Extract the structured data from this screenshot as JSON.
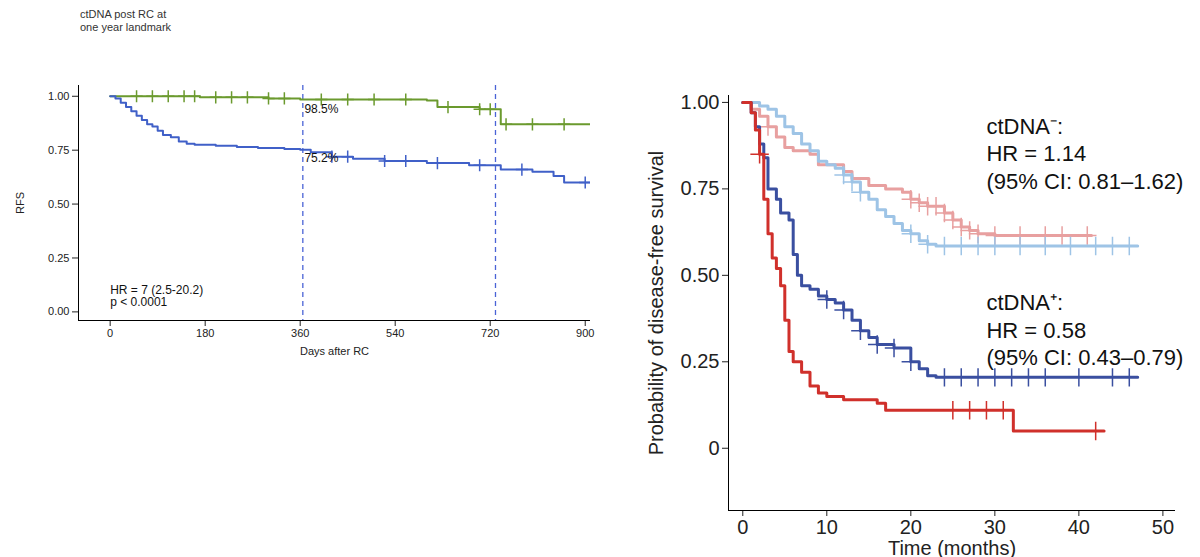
{
  "chart_data": [
    {
      "type": "line",
      "title": "ctDNA post RC at one year landmark",
      "xlabel": "Days after RC",
      "ylabel": "RFS",
      "xlim": [
        -60,
        910
      ],
      "ylim": [
        -0.04,
        1.05
      ],
      "xticks": [
        0,
        180,
        360,
        540,
        720,
        900
      ],
      "yticks": [
        {
          "value": 0,
          "label": "0.00"
        },
        {
          "value": 0.25,
          "label": "0.25"
        },
        {
          "value": 0.5,
          "label": "0.50"
        },
        {
          "value": 0.75,
          "label": "0.75"
        },
        {
          "value": 1,
          "label": "1.00"
        }
      ],
      "reference_lines": [
        {
          "x": 365,
          "color": "#4a63d6",
          "line_style": "dashed"
        },
        {
          "x": 730,
          "color": "#4a63d6",
          "line_style": "dashed"
        }
      ],
      "series": [
        {
          "color": "#6b9a2e",
          "marker": "plus",
          "x": [
            0,
            170,
            300,
            360,
            600,
            620,
            700,
            740,
            910
          ],
          "values": [
            1,
            0.995,
            0.99,
            0.985,
            0.98,
            0.95,
            0.94,
            0.87,
            0.87
          ],
          "censored": [
            50,
            80,
            110,
            140,
            160,
            200,
            230,
            260,
            300,
            330,
            400,
            450,
            500,
            560,
            640,
            700,
            720,
            750,
            800,
            860
          ]
        },
        {
          "color": "#4060c8",
          "marker": "plus",
          "x": [
            0,
            10,
            20,
            30,
            40,
            50,
            60,
            70,
            80,
            90,
            100,
            115,
            130,
            145,
            160,
            200,
            240,
            280,
            330,
            360,
            380,
            420,
            460,
            520,
            600,
            680,
            740,
            800,
            840,
            860,
            910
          ],
          "values": [
            1,
            0.99,
            0.97,
            0.95,
            0.93,
            0.91,
            0.89,
            0.87,
            0.86,
            0.84,
            0.82,
            0.81,
            0.79,
            0.78,
            0.775,
            0.77,
            0.765,
            0.76,
            0.755,
            0.752,
            0.74,
            0.72,
            0.71,
            0.7,
            0.69,
            0.68,
            0.66,
            0.65,
            0.63,
            0.6,
            0.6
          ],
          "censored": [
            420,
            450,
            520,
            560,
            620,
            700,
            780,
            900
          ]
        }
      ],
      "annotations": [
        {
          "text": "98.5%",
          "x": 368,
          "y": 0.94
        },
        {
          "text": "75.2%",
          "x": 368,
          "y": 0.715
        },
        {
          "text": "HR = 7 (2.5-20.2)",
          "x": 0,
          "y": 0.1
        },
        {
          "text": "p < 0.0001",
          "x": 0,
          "y": 0.045
        }
      ]
    },
    {
      "type": "line",
      "xlabel": "Time (months)",
      "ylabel": "Probability of disease-free survival",
      "xlim": [
        -1.7,
        51.5
      ],
      "ylim": [
        -0.18,
        1.02
      ],
      "xticks": [
        0,
        10,
        20,
        30,
        40,
        50
      ],
      "yticks": [
        0,
        {
          "value": 0.25,
          "label": "0.25"
        },
        {
          "value": 0.5,
          "label": "0.50"
        },
        {
          "value": 0.75,
          "label": "0.75"
        },
        {
          "value": 1,
          "label": "1.00"
        }
      ],
      "series": [
        {
          "color": "#e8a0a0",
          "marker": "plus",
          "x": [
            0,
            1,
            2,
            3,
            4,
            5,
            6,
            8,
            9,
            12,
            13,
            15,
            17,
            19,
            20,
            21,
            22,
            24,
            25,
            26,
            27,
            28,
            30,
            41.5
          ],
          "values": [
            1,
            0.98,
            0.96,
            0.93,
            0.9,
            0.87,
            0.86,
            0.85,
            0.82,
            0.8,
            0.78,
            0.76,
            0.75,
            0.74,
            0.72,
            0.71,
            0.7,
            0.68,
            0.66,
            0.64,
            0.63,
            0.62,
            0.615,
            0.615
          ],
          "censored": [
            3,
            20,
            21,
            22,
            23,
            24,
            25,
            26,
            27,
            28,
            30,
            33,
            36,
            38,
            41
          ]
        },
        {
          "color": "#9ec4e6",
          "marker": "plus",
          "x": [
            0,
            2,
            3,
            4,
            5,
            6,
            7,
            8,
            9,
            10,
            11,
            12,
            13,
            14,
            15,
            16,
            17,
            18,
            19,
            20,
            21,
            22,
            23,
            47
          ],
          "values": [
            1,
            0.99,
            0.98,
            0.96,
            0.93,
            0.91,
            0.88,
            0.86,
            0.83,
            0.82,
            0.81,
            0.79,
            0.77,
            0.74,
            0.72,
            0.69,
            0.67,
            0.65,
            0.63,
            0.62,
            0.6,
            0.59,
            0.585,
            0.585
          ],
          "censored": [
            12,
            13,
            14,
            20,
            22,
            24,
            26,
            28,
            30,
            33,
            36,
            39,
            42,
            44,
            46
          ]
        },
        {
          "color": "#3a4fa0",
          "marker": "plus",
          "x": [
            0,
            1,
            1.5,
            2,
            2.5,
            3,
            4,
            4.5,
            5.5,
            6,
            6.5,
            7,
            8,
            9,
            10,
            11,
            12,
            13,
            14,
            15,
            16,
            18,
            20,
            21,
            22,
            23,
            47
          ],
          "values": [
            1,
            0.97,
            0.93,
            0.88,
            0.84,
            0.75,
            0.72,
            0.68,
            0.66,
            0.56,
            0.5,
            0.47,
            0.46,
            0.44,
            0.43,
            0.42,
            0.4,
            0.37,
            0.34,
            0.32,
            0.3,
            0.29,
            0.25,
            0.23,
            0.21,
            0.205,
            0.205
          ],
          "censored": [
            10,
            12,
            14,
            16,
            18,
            20,
            24,
            26,
            28,
            30,
            32,
            34,
            36,
            40,
            44,
            46
          ]
        },
        {
          "color": "#d0302b",
          "marker": "plus",
          "x": [
            0,
            1,
            1.5,
            2,
            2.5,
            3,
            3.5,
            4,
            4.5,
            5,
            5.5,
            6,
            7,
            8,
            9,
            10,
            12,
            16,
            17,
            32,
            32.2,
            43
          ],
          "values": [
            1,
            0.97,
            0.92,
            0.85,
            0.72,
            0.62,
            0.55,
            0.52,
            0.47,
            0.37,
            0.28,
            0.25,
            0.22,
            0.18,
            0.16,
            0.15,
            0.14,
            0.13,
            0.11,
            0.11,
            0.05,
            0.05
          ],
          "censored": [
            2,
            25,
            27,
            29,
            31,
            42
          ]
        }
      ],
      "annotations": [
        {
          "text": "ctDNA⁻:",
          "x": 29,
          "y": 0.93
        },
        {
          "text": "HR = 1.14",
          "x": 29,
          "y": 0.85
        },
        {
          "text": "(95% CI: 0.81–1.62)",
          "x": 29,
          "y": 0.77
        },
        {
          "text": "ctDNA⁺:",
          "x": 29,
          "y": 0.42
        },
        {
          "text": "HR = 0.58",
          "x": 29,
          "y": 0.34
        },
        {
          "text": "(95% CI: 0.43–0.79)",
          "x": 29,
          "y": 0.26
        }
      ]
    }
  ]
}
